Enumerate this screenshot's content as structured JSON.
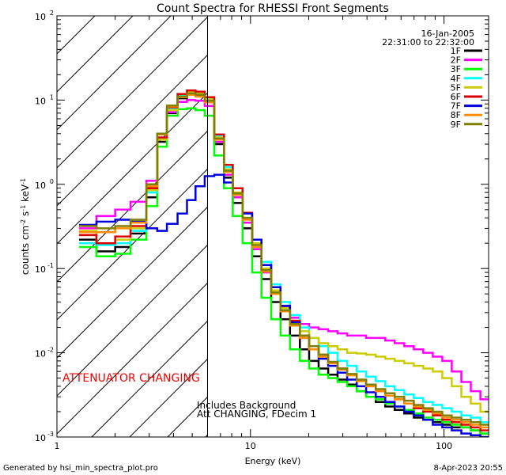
{
  "chart_data": {
    "type": "line",
    "title": "Count Spectra for RHESSI Front Segments",
    "xlabel": "Energy (keV)",
    "ylabel_parts": [
      "counts cm",
      "-2",
      " s",
      "-1",
      " keV",
      "-1"
    ],
    "x_scale": "log",
    "y_scale": "log",
    "xlim": [
      1,
      170
    ],
    "ylim": [
      0.001,
      100
    ],
    "x_ticks": [
      {
        "value": 1,
        "label": "1"
      },
      {
        "value": 10,
        "label": "10"
      },
      {
        "value": 100,
        "label": "100"
      }
    ],
    "y_ticks": [
      {
        "value": 0.001,
        "base": "10",
        "exp": "-3"
      },
      {
        "value": 0.01,
        "base": "10",
        "exp": "-2"
      },
      {
        "value": 0.1,
        "base": "10",
        "exp": "-1"
      },
      {
        "value": 1,
        "base": "10",
        "exp": "0"
      },
      {
        "value": 10,
        "base": "10",
        "exp": "1"
      },
      {
        "value": 100,
        "base": "10",
        "exp": "2"
      }
    ],
    "legend_position": "top-right",
    "legend_header": [
      "16-Jan-2005",
      "22:31:00 to 22:32:00"
    ],
    "attenuated_region": {
      "x_from": 1,
      "x_to": 6
    },
    "annotations": {
      "attenuator": "ATTENUATOR CHANGING",
      "background": "Includes Background",
      "att_status": "Att CHANGING, FDecim 1"
    },
    "footer_left": "Generated by hsi_min_spectra_plot.pro",
    "footer_right": "8-Apr-2023 20:55",
    "energy_edges": [
      1.3,
      1.6,
      2.0,
      2.4,
      2.9,
      3.3,
      3.7,
      4.2,
      4.7,
      5.2,
      5.8,
      6.5,
      7.3,
      8.1,
      9.1,
      10.2,
      11.4,
      12.8,
      14.3,
      16.0,
      18.0,
      20.1,
      22.5,
      25.2,
      28.2,
      31.6,
      35.4,
      39.6,
      44.4,
      49.7,
      55.6,
      62.3,
      69.8,
      78.1,
      87.5,
      98.0,
      109.7,
      122.9,
      137.6,
      154.1,
      172.6
    ],
    "series": [
      {
        "name": "1F",
        "color": "#000000",
        "values": [
          0.22,
          0.16,
          0.18,
          0.26,
          0.7,
          3.2,
          7.0,
          10.5,
          12.0,
          11.5,
          9.5,
          3.0,
          1.2,
          0.6,
          0.3,
          0.14,
          0.075,
          0.04,
          0.025,
          0.016,
          0.011,
          0.008,
          0.0065,
          0.0055,
          0.0048,
          0.0042,
          0.0035,
          0.003,
          0.0026,
          0.0023,
          0.0021,
          0.0019,
          0.0017,
          0.0016,
          0.0015,
          0.0014,
          0.0013,
          0.0013,
          0.0012,
          0.0011
        ]
      },
      {
        "name": "2F",
        "color": "#ff00ff",
        "values": [
          0.3,
          0.42,
          0.5,
          0.62,
          1.1,
          3.5,
          7.2,
          9.5,
          10.0,
          9.8,
          8.5,
          3.2,
          1.3,
          0.7,
          0.35,
          0.17,
          0.09,
          0.05,
          0.035,
          0.026,
          0.022,
          0.02,
          0.019,
          0.018,
          0.017,
          0.016,
          0.016,
          0.015,
          0.015,
          0.014,
          0.013,
          0.012,
          0.011,
          0.01,
          0.009,
          0.008,
          0.006,
          0.0045,
          0.0035,
          0.0028
        ]
      },
      {
        "name": "3F",
        "color": "#00ff00",
        "values": [
          0.18,
          0.14,
          0.15,
          0.22,
          0.55,
          2.8,
          6.5,
          7.8,
          8.0,
          7.6,
          6.5,
          2.2,
          0.9,
          0.42,
          0.2,
          0.09,
          0.045,
          0.025,
          0.016,
          0.011,
          0.008,
          0.0065,
          0.0055,
          0.005,
          0.0045,
          0.004,
          0.0035,
          0.003,
          0.0028,
          0.0025,
          0.0023,
          0.0021,
          0.0019,
          0.0017,
          0.0016,
          0.0015,
          0.0014,
          0.0013,
          0.0012,
          0.0011
        ]
      },
      {
        "name": "4F",
        "color": "#00ffff",
        "values": [
          0.2,
          0.19,
          0.2,
          0.28,
          0.8,
          3.6,
          8.0,
          11.5,
          13.0,
          12.5,
          10.5,
          3.8,
          1.6,
          0.9,
          0.45,
          0.22,
          0.12,
          0.065,
          0.04,
          0.028,
          0.02,
          0.015,
          0.012,
          0.01,
          0.008,
          0.007,
          0.006,
          0.0052,
          0.0046,
          0.004,
          0.0036,
          0.0032,
          0.0029,
          0.0026,
          0.0024,
          0.0022,
          0.002,
          0.0018,
          0.0017,
          0.0015
        ]
      },
      {
        "name": "5F",
        "color": "#cccc00",
        "values": [
          0.28,
          0.2,
          0.22,
          0.3,
          0.85,
          3.4,
          7.6,
          11.0,
          12.5,
          12.0,
          10.2,
          3.6,
          1.5,
          0.8,
          0.4,
          0.2,
          0.1,
          0.055,
          0.034,
          0.024,
          0.018,
          0.015,
          0.013,
          0.012,
          0.011,
          0.01,
          0.0098,
          0.0095,
          0.009,
          0.0085,
          0.008,
          0.0075,
          0.007,
          0.0065,
          0.006,
          0.005,
          0.004,
          0.003,
          0.0025,
          0.002
        ]
      },
      {
        "name": "6F",
        "color": "#dd0000",
        "values": [
          0.25,
          0.2,
          0.24,
          0.32,
          0.9,
          3.6,
          8.2,
          11.8,
          13.0,
          12.6,
          10.8,
          3.9,
          1.7,
          0.9,
          0.46,
          0.22,
          0.11,
          0.06,
          0.036,
          0.024,
          0.016,
          0.012,
          0.0095,
          0.0078,
          0.0065,
          0.0055,
          0.0047,
          0.004,
          0.0035,
          0.0031,
          0.0028,
          0.0025,
          0.0022,
          0.002,
          0.0018,
          0.0016,
          0.0015,
          0.0014,
          0.0013,
          0.0012
        ]
      },
      {
        "name": "7F",
        "color": "#0000dd",
        "values": [
          0.33,
          0.36,
          0.38,
          0.36,
          0.3,
          0.28,
          0.34,
          0.45,
          0.65,
          0.95,
          1.25,
          1.3,
          1.05,
          0.75,
          0.45,
          0.22,
          0.11,
          0.06,
          0.036,
          0.023,
          0.015,
          0.011,
          0.0085,
          0.007,
          0.0058,
          0.0048,
          0.004,
          0.0034,
          0.003,
          0.0026,
          0.0023,
          0.002,
          0.0018,
          0.0016,
          0.0014,
          0.0013,
          0.0012,
          0.0011,
          0.00105,
          0.001
        ]
      },
      {
        "name": "8F",
        "color": "#ff8c00",
        "values": [
          0.27,
          0.27,
          0.3,
          0.35,
          0.95,
          3.9,
          8.4,
          10.8,
          11.5,
          11.0,
          9.4,
          3.4,
          1.4,
          0.75,
          0.38,
          0.18,
          0.092,
          0.05,
          0.031,
          0.021,
          0.015,
          0.011,
          0.009,
          0.0075,
          0.0063,
          0.0054,
          0.0046,
          0.004,
          0.0035,
          0.0031,
          0.0028,
          0.0025,
          0.0023,
          0.0021,
          0.0019,
          0.0017,
          0.0016,
          0.0015,
          0.0014,
          0.0013
        ]
      },
      {
        "name": "9F",
        "color": "#808000",
        "values": [
          0.32,
          0.3,
          0.32,
          0.38,
          1.0,
          4.0,
          8.6,
          11.0,
          12.0,
          11.6,
          9.8,
          3.5,
          1.45,
          0.78,
          0.4,
          0.19,
          0.096,
          0.052,
          0.032,
          0.022,
          0.016,
          0.012,
          0.0095,
          0.0078,
          0.0065,
          0.0056,
          0.0048,
          0.0042,
          0.0037,
          0.0033,
          0.003,
          0.0027,
          0.0024,
          0.0022,
          0.002,
          0.0018,
          0.0017,
          0.0016,
          0.0015,
          0.0014
        ]
      }
    ]
  }
}
